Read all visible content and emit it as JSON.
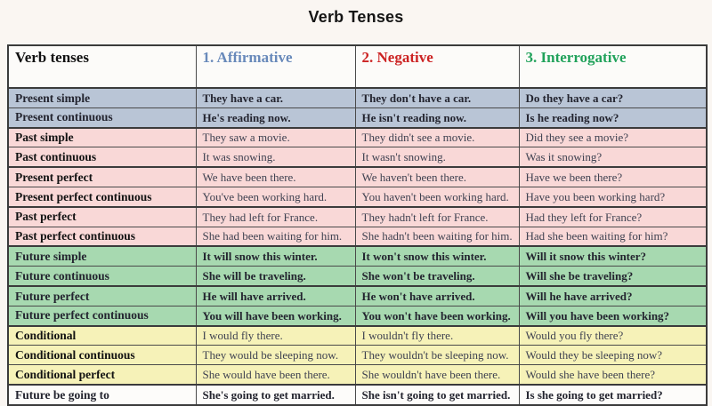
{
  "page": {
    "title": "Verb Tenses"
  },
  "table": {
    "headers": {
      "tense": {
        "label": "Verb tenses",
        "color": "#121212"
      },
      "affirmative": {
        "label": "1. Affirmative",
        "color": "#6889ba"
      },
      "negative": {
        "label": "2. Negative",
        "color": "#cc2323"
      },
      "interrogative": {
        "label": "3. Interrogative",
        "color": "#21a25b"
      }
    },
    "rows": [
      {
        "tense": "Present simple",
        "affirmative": "They have a car.",
        "negative": "They don't have a car.",
        "interrogative": "Do they have a car?",
        "group": "blue",
        "bold": true
      },
      {
        "tense": "Present continuous",
        "affirmative": "He's reading now.",
        "negative": "He isn't reading now.",
        "interrogative": "Is he reading now?",
        "group": "blue",
        "bold": true
      },
      {
        "tense": "Past simple",
        "affirmative": "They saw a movie.",
        "negative": "They didn't see a movie.",
        "interrogative": "Did they see a movie?",
        "group": "pink",
        "bold": false
      },
      {
        "tense": "Past continuous",
        "affirmative": "It was snowing.",
        "negative": "It wasn't snowing.",
        "interrogative": "Was it snowing?",
        "group": "pink",
        "bold": false
      },
      {
        "tense": "Present perfect",
        "affirmative": "We have been there.",
        "negative": "We haven't been there.",
        "interrogative": "Have we been there?",
        "group": "pink",
        "bold": false
      },
      {
        "tense": "Present perfect continuous",
        "affirmative": "You've been working hard.",
        "negative": "You haven't been working hard.",
        "interrogative": "Have you been working hard?",
        "group": "pink",
        "bold": false
      },
      {
        "tense": "Past perfect",
        "affirmative": "They had left for France.",
        "negative": "They hadn't left for France.",
        "interrogative": "Had they left for France?",
        "group": "pink",
        "bold": false
      },
      {
        "tense": "Past perfect continuous",
        "affirmative": "She had been waiting for him.",
        "negative": "She hadn't been waiting for him.",
        "interrogative": "Had she been waiting for him?",
        "group": "pink",
        "bold": false
      },
      {
        "tense": "Future simple",
        "affirmative": "It will snow this winter.",
        "negative": "It won't snow this winter.",
        "interrogative": "Will it snow this winter?",
        "group": "green",
        "bold": true
      },
      {
        "tense": "Future continuous",
        "affirmative": "She will be traveling.",
        "negative": "She won't be traveling.",
        "interrogative": "Will she be traveling?",
        "group": "green",
        "bold": true
      },
      {
        "tense": "Future perfect",
        "affirmative": "He will have arrived.",
        "negative": "He won't have arrived.",
        "interrogative": "Will he have arrived?",
        "group": "green",
        "bold": true
      },
      {
        "tense": "Future perfect continuous",
        "affirmative": "You will have been working.",
        "negative": "You won't have been working.",
        "interrogative": "Will you have been working?",
        "group": "green",
        "bold": true
      },
      {
        "tense": "Conditional",
        "affirmative": "I would fly there.",
        "negative": "I wouldn't fly there.",
        "interrogative": "Would you fly there?",
        "group": "yellow",
        "bold": false
      },
      {
        "tense": "Conditional continuous",
        "affirmative": "They would be sleeping now.",
        "negative": "They wouldn't be sleeping now.",
        "interrogative": "Would they be sleeping now?",
        "group": "yellow",
        "bold": false
      },
      {
        "tense": "Conditional perfect",
        "affirmative": "She would have been there.",
        "negative": "She wouldn't have been there.",
        "interrogative": "Would she have been there?",
        "group": "yellow",
        "bold": false
      },
      {
        "tense": "Future be going to",
        "affirmative": "She's going to get married.",
        "negative": "She isn't going to get married.",
        "interrogative": "Is she going to get married?",
        "group": "white",
        "bold": true
      }
    ]
  },
  "colors": {
    "page_background": "#faf6f2",
    "row_blue": "#b9c5d6",
    "row_pink": "#f9d8d7",
    "row_green": "#a7d9b0",
    "row_yellow": "#f6f2b8",
    "row_white": "#fdfcfa",
    "border": "#3b3b3b"
  }
}
